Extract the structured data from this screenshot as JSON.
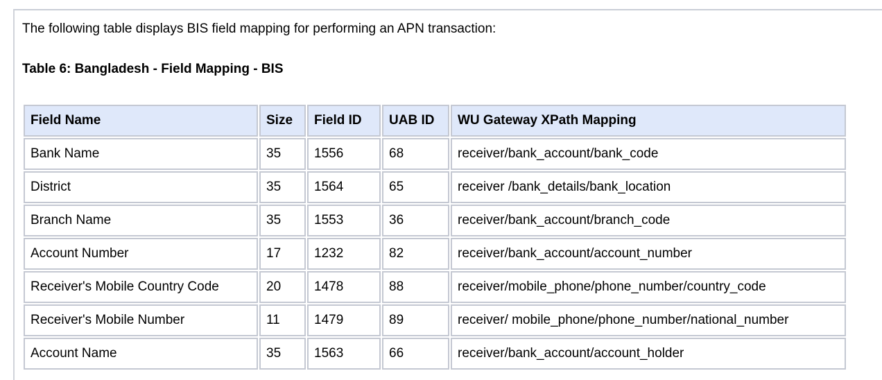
{
  "intro_text": "The following table displays BIS field mapping for performing an APN transaction:",
  "table_caption": "Table 6: Bangladesh - Field Mapping - BIS",
  "table": {
    "headers": [
      "Field Name",
      "Size",
      "Field ID",
      "UAB ID",
      "WU Gateway XPath Mapping"
    ],
    "rows": [
      [
        "Bank Name",
        "35",
        "1556",
        "68",
        "receiver/bank_account/bank_code"
      ],
      [
        "District",
        "35",
        "1564",
        "65",
        "receiver /bank_details/bank_location"
      ],
      [
        "Branch Name",
        "35",
        "1553",
        "36",
        "receiver/bank_account/branch_code"
      ],
      [
        "Account Number",
        "17",
        "1232",
        "82",
        "receiver/bank_account/account_number"
      ],
      [
        "Receiver's Mobile Country Code",
        "20",
        "1478",
        "88",
        "receiver/mobile_phone/phone_number/country_code"
      ],
      [
        "Receiver's Mobile Number",
        "11",
        "1479",
        "89",
        "receiver/ mobile_phone/phone_number/national_number"
      ],
      [
        "Account Name",
        "35",
        "1563",
        "66",
        "receiver/bank_account/account_holder"
      ]
    ]
  },
  "colors": {
    "header_row_bg": "#dfe8fa",
    "cell_border": "#c4c8d2",
    "panel_border": "#c9cdd6",
    "text": "#000000",
    "background": "#ffffff"
  }
}
